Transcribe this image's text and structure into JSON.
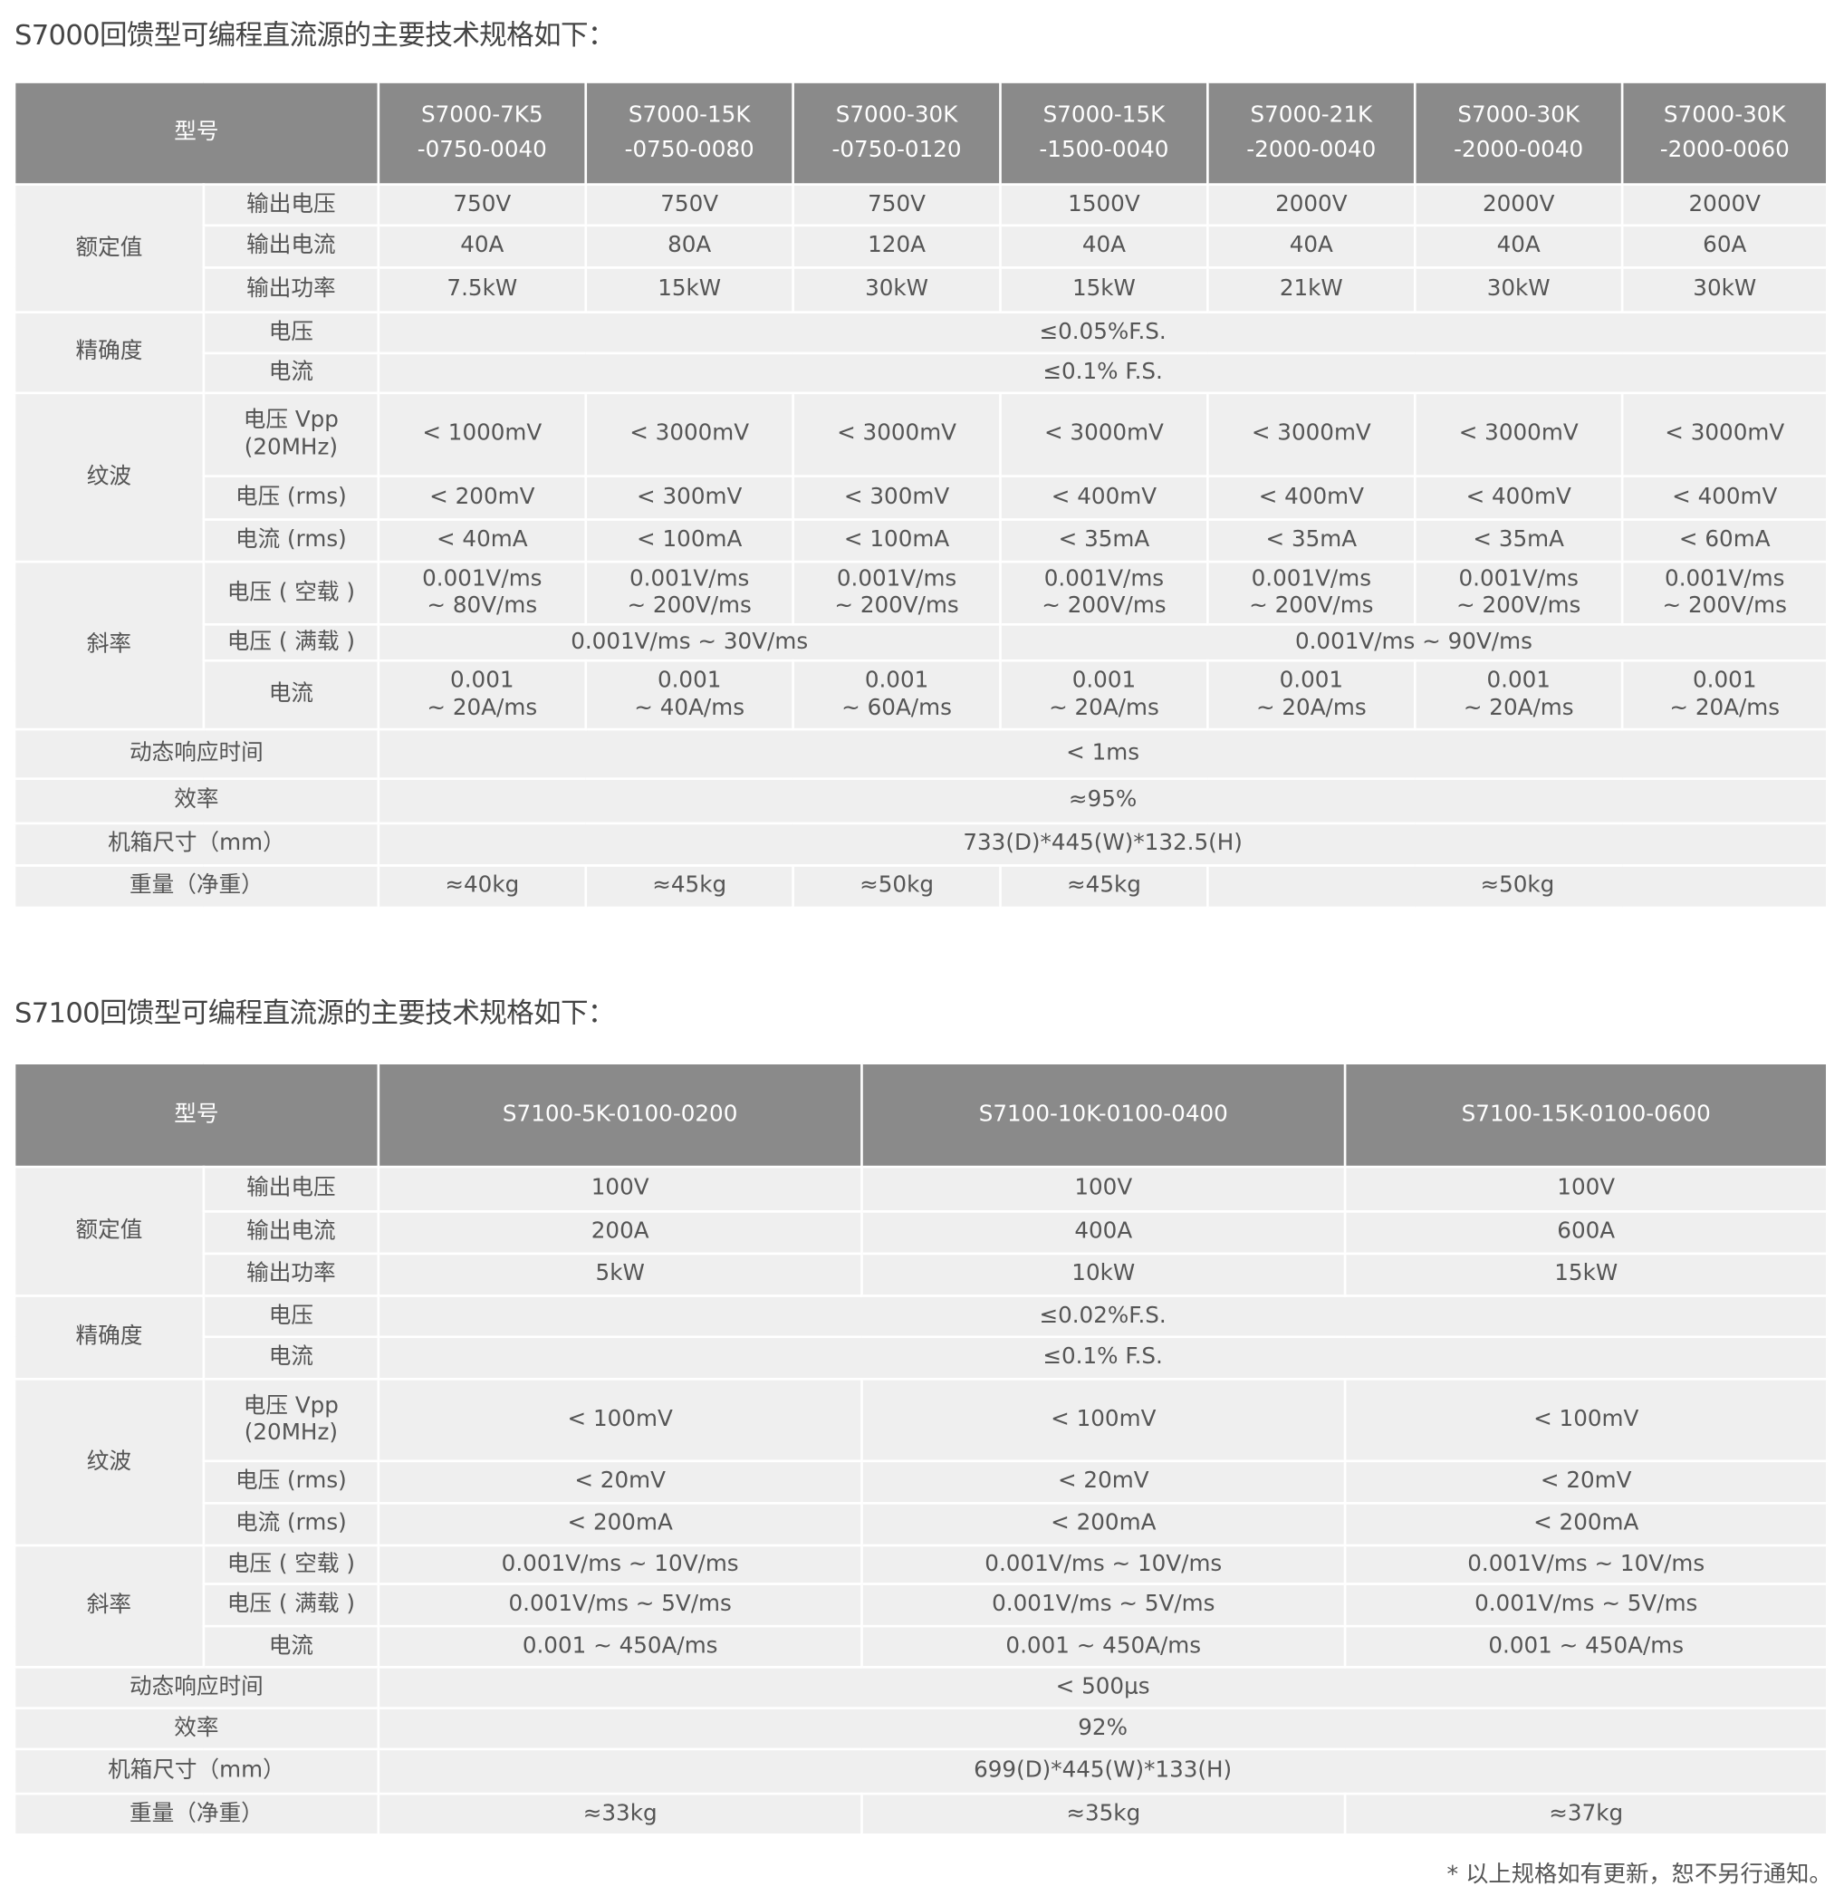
{
  "tables": [
    {
      "title": "S7000回馈型可编程直流源的主要技术规格如下：",
      "header": {
        "label": "型号",
        "models": [
          "S7000-7K5\n-0750-0040",
          "S7000-15K\n-0750-0080",
          "S7000-30K\n-0750-0120",
          "S7000-15K\n-1500-0040",
          "S7000-21K\n-2000-0040",
          "S7000-30K\n-2000-0040",
          "S7000-30K\n-2000-0060"
        ]
      },
      "rows": [
        {
          "group": "额定值",
          "group_rows": 3,
          "sub": "输出电压",
          "cells": [
            {
              "text": "750V"
            },
            {
              "text": "750V"
            },
            {
              "text": "750V"
            },
            {
              "text": "1500V"
            },
            {
              "text": "2000V"
            },
            {
              "text": "2000V"
            },
            {
              "text": "2000V"
            }
          ]
        },
        {
          "sub": "输出电流",
          "cells": [
            {
              "text": "40A"
            },
            {
              "text": "80A"
            },
            {
              "text": "120A"
            },
            {
              "text": "40A"
            },
            {
              "text": "40A"
            },
            {
              "text": "40A"
            },
            {
              "text": "60A"
            }
          ]
        },
        {
          "sub": "输出功率",
          "cells": [
            {
              "text": "7.5kW"
            },
            {
              "text": "15kW"
            },
            {
              "text": "30kW"
            },
            {
              "text": "15kW"
            },
            {
              "text": "21kW"
            },
            {
              "text": "30kW"
            },
            {
              "text": "30kW"
            }
          ]
        },
        {
          "group": "精确度",
          "group_rows": 2,
          "sub": "电压",
          "cells": [
            {
              "text": "≤0.05%F.S.",
              "span": 7
            }
          ]
        },
        {
          "sub": "电流",
          "cells": [
            {
              "text": "≤0.1% F.S.",
              "span": 7
            }
          ]
        },
        {
          "group": "纹波",
          "group_rows": 3,
          "sub": "电压 Vpp\n(20MHz)",
          "cells": [
            {
              "text": "< 1000mV"
            },
            {
              "text": "< 3000mV"
            },
            {
              "text": "< 3000mV"
            },
            {
              "text": "< 3000mV"
            },
            {
              "text": "< 3000mV"
            },
            {
              "text": "< 3000mV"
            },
            {
              "text": "< 3000mV"
            }
          ]
        },
        {
          "sub": "电压 (rms)",
          "cells": [
            {
              "text": "< 200mV"
            },
            {
              "text": "< 300mV"
            },
            {
              "text": "< 300mV"
            },
            {
              "text": "< 400mV"
            },
            {
              "text": "< 400mV"
            },
            {
              "text": "< 400mV"
            },
            {
              "text": "< 400mV"
            }
          ]
        },
        {
          "sub": "电流 (rms)",
          "cells": [
            {
              "text": "< 40mA"
            },
            {
              "text": "< 100mA"
            },
            {
              "text": "< 100mA"
            },
            {
              "text": "< 35mA"
            },
            {
              "text": "< 35mA"
            },
            {
              "text": "< 35mA"
            },
            {
              "text": "< 60mA"
            }
          ]
        },
        {
          "group": "斜率",
          "group_rows": 3,
          "sub": "电压 ( 空载 )",
          "cells": [
            {
              "text": "0.001V/ms\n~ 80V/ms"
            },
            {
              "text": "0.001V/ms\n~ 200V/ms"
            },
            {
              "text": "0.001V/ms\n~ 200V/ms"
            },
            {
              "text": "0.001V/ms\n~ 200V/ms"
            },
            {
              "text": "0.001V/ms\n~ 200V/ms"
            },
            {
              "text": "0.001V/ms\n~ 200V/ms"
            },
            {
              "text": "0.001V/ms\n~ 200V/ms"
            }
          ]
        },
        {
          "sub": "电压 ( 满载 )",
          "cells": [
            {
              "text": "0.001V/ms ~ 30V/ms",
              "span": 3
            },
            {
              "text": "0.001V/ms ~ 90V/ms",
              "span": 4
            }
          ]
        },
        {
          "sub": "电流",
          "cells": [
            {
              "text": "0.001\n~ 20A/ms"
            },
            {
              "text": "0.001\n~ 40A/ms"
            },
            {
              "text": "0.001\n~ 60A/ms"
            },
            {
              "text": "0.001\n~ 20A/ms"
            },
            {
              "text": "0.001\n~ 20A/ms"
            },
            {
              "text": "0.001\n~ 20A/ms"
            },
            {
              "text": "0.001\n~ 20A/ms"
            }
          ]
        },
        {
          "label": "动态响应时间",
          "cells": [
            {
              "text": "< 1ms",
              "span": 7
            }
          ]
        },
        {
          "label": "效率",
          "cells": [
            {
              "text": "≈95%",
              "span": 7
            }
          ]
        },
        {
          "label": "机箱尺寸（mm）",
          "cells": [
            {
              "text": "733(D)*445(W)*132.5(H)",
              "span": 7
            }
          ]
        },
        {
          "label": "重量（净重）",
          "cells": [
            {
              "text": "≈40kg"
            },
            {
              "text": "≈45kg"
            },
            {
              "text": "≈50kg"
            },
            {
              "text": "≈45kg"
            },
            {
              "text": "≈50kg",
              "span": 3
            }
          ]
        }
      ]
    },
    {
      "title": "S7100回馈型可编程直流源的主要技术规格如下：",
      "header": {
        "label": "型号",
        "models": [
          "S7100-5K-0100-0200",
          "S7100-10K-0100-0400",
          "S7100-15K-0100-0600"
        ]
      },
      "rows": [
        {
          "group": "额定值",
          "group_rows": 3,
          "sub": "输出电压",
          "cells": [
            {
              "text": "100V"
            },
            {
              "text": "100V"
            },
            {
              "text": "100V"
            }
          ]
        },
        {
          "sub": "输出电流",
          "cells": [
            {
              "text": "200A"
            },
            {
              "text": "400A"
            },
            {
              "text": "600A"
            }
          ]
        },
        {
          "sub": "输出功率",
          "cells": [
            {
              "text": "5kW"
            },
            {
              "text": "10kW"
            },
            {
              "text": "15kW"
            }
          ]
        },
        {
          "group": "精确度",
          "group_rows": 2,
          "sub": "电压",
          "cells": [
            {
              "text": "≤0.02%F.S.",
              "span": 3
            }
          ]
        },
        {
          "sub": "电流",
          "cells": [
            {
              "text": "≤0.1% F.S.",
              "span": 3
            }
          ]
        },
        {
          "group": "纹波",
          "group_rows": 3,
          "sub": "电压 Vpp\n(20MHz)",
          "cells": [
            {
              "text": "< 100mV"
            },
            {
              "text": "< 100mV"
            },
            {
              "text": "< 100mV"
            }
          ]
        },
        {
          "sub": "电压 (rms)",
          "cells": [
            {
              "text": "< 20mV"
            },
            {
              "text": "< 20mV"
            },
            {
              "text": "< 20mV"
            }
          ]
        },
        {
          "sub": "电流 (rms)",
          "cells": [
            {
              "text": "< 200mA"
            },
            {
              "text": "< 200mA"
            },
            {
              "text": "< 200mA"
            }
          ]
        },
        {
          "group": "斜率",
          "group_rows": 3,
          "sub": "电压 ( 空载 )",
          "cells": [
            {
              "text": "0.001V/ms ~ 10V/ms"
            },
            {
              "text": "0.001V/ms ~ 10V/ms"
            },
            {
              "text": "0.001V/ms ~ 10V/ms"
            }
          ]
        },
        {
          "sub": "电压 ( 满载 )",
          "cells": [
            {
              "text": "0.001V/ms ~ 5V/ms"
            },
            {
              "text": "0.001V/ms ~ 5V/ms"
            },
            {
              "text": "0.001V/ms ~ 5V/ms"
            }
          ]
        },
        {
          "sub": "电流",
          "cells": [
            {
              "text": "0.001 ~ 450A/ms"
            },
            {
              "text": "0.001 ~ 450A/ms"
            },
            {
              "text": "0.001 ~ 450A/ms"
            }
          ]
        },
        {
          "label": "动态响应时间",
          "cells": [
            {
              "text": "< 500μs",
              "span": 3
            }
          ]
        },
        {
          "label": "效率",
          "cells": [
            {
              "text": "92%",
              "span": 3
            }
          ]
        },
        {
          "label": "机箱尺寸（mm）",
          "cells": [
            {
              "text": "699(D)*445(W)*133(H)",
              "span": 3
            }
          ]
        },
        {
          "label": "重量（净重）",
          "cells": [
            {
              "text": "≈33kg"
            },
            {
              "text": "≈35kg"
            },
            {
              "text": "≈37kg"
            }
          ]
        }
      ]
    }
  ],
  "footer_note": "* 以上规格如有更新，恕不另行通知。"
}
